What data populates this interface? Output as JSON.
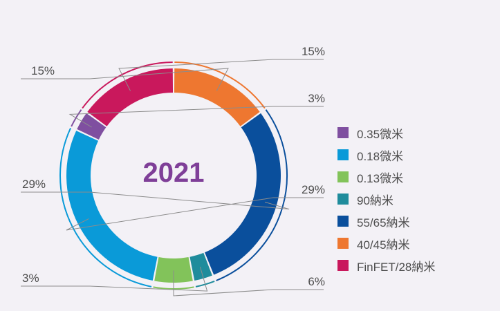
{
  "chart_data": {
    "type": "pie",
    "donut": true,
    "center_label": "2021",
    "legend_position": "right",
    "categories": [
      "0.35微米",
      "0.18微米",
      "0.13微米",
      "90納米",
      "55/65納米",
      "40/45納米",
      "FinFET/28納米"
    ],
    "values": [
      3,
      29,
      6,
      3,
      29,
      15,
      15
    ],
    "value_labels": [
      "3%",
      "29%",
      "6%",
      "3%",
      "29%",
      "15%",
      "15%"
    ],
    "colors": [
      "#7f4fa0",
      "#0a9ad8",
      "#82c35a",
      "#1f8c9c",
      "#0a4f9c",
      "#ee7730",
      "#c9185c"
    ]
  }
}
